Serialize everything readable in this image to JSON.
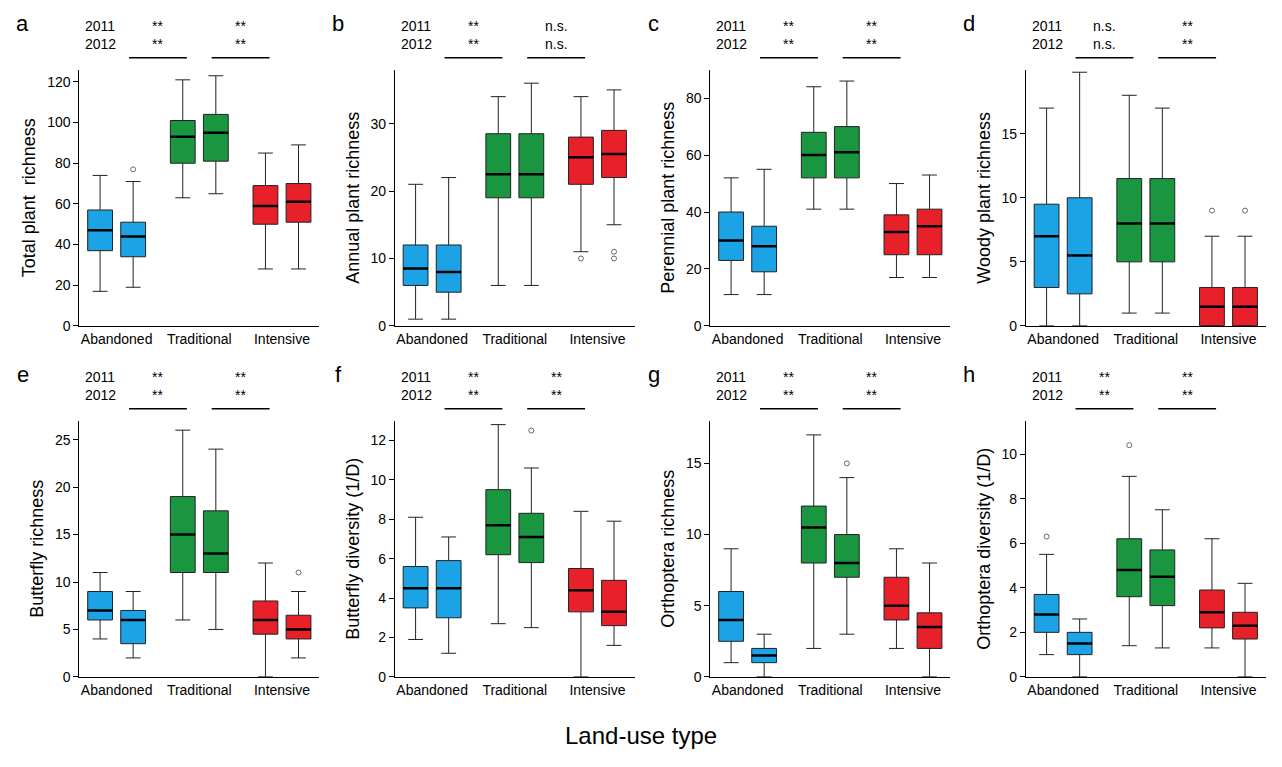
{
  "x_label": "Land-use type",
  "chart_data": [
    {
      "type": "box",
      "panel": "a",
      "ylabel": "Total plant  richness",
      "categories": [
        "Abandoned",
        "Traditional",
        "Intensive"
      ],
      "colors": [
        "#1ba3e6",
        "#1a9641",
        "#e8202a"
      ],
      "ylim": [
        0,
        126
      ],
      "yticks": [
        0,
        20,
        40,
        60,
        80,
        100,
        120
      ],
      "series": [
        {
          "name": "2011",
          "values": [
            {
              "whisker_low": 17,
              "q1": 37,
              "median": 47,
              "q3": 57,
              "whisker_high": 74
            },
            {
              "whisker_low": 63,
              "q1": 80,
              "median": 93,
              "q3": 101,
              "whisker_high": 121
            },
            {
              "whisker_low": 28,
              "q1": 50,
              "median": 59,
              "q3": 69,
              "whisker_high": 85
            }
          ]
        },
        {
          "name": "2012",
          "values": [
            {
              "whisker_low": 19,
              "q1": 34,
              "median": 44,
              "q3": 51,
              "whisker_high": 71,
              "outliers": [
                77
              ]
            },
            {
              "whisker_low": 65,
              "q1": 81,
              "median": 95,
              "q3": 104,
              "whisker_high": 123
            },
            {
              "whisker_low": 28,
              "q1": 51,
              "median": 61,
              "q3": 70,
              "whisker_high": 89
            }
          ]
        }
      ],
      "comparisons": [
        {
          "pair": [
            "Abandoned",
            "Traditional"
          ],
          "labels": [
            "**",
            "**"
          ]
        },
        {
          "pair": [
            "Traditional",
            "Intensive"
          ],
          "labels": [
            "**",
            "**"
          ]
        }
      ]
    },
    {
      "type": "box",
      "panel": "b",
      "ylabel": "Annual plant richness",
      "categories": [
        "Abandoned",
        "Traditional",
        "Intensive"
      ],
      "colors": [
        "#1ba3e6",
        "#1a9641",
        "#e8202a"
      ],
      "ylim": [
        0,
        38
      ],
      "yticks": [
        0,
        10,
        20,
        30
      ],
      "series": [
        {
          "name": "2011",
          "values": [
            {
              "whisker_low": 1,
              "q1": 6,
              "median": 8.5,
              "q3": 12,
              "whisker_high": 21
            },
            {
              "whisker_low": 6,
              "q1": 19,
              "median": 22.5,
              "q3": 28.5,
              "whisker_high": 34
            },
            {
              "whisker_low": 11,
              "q1": 21,
              "median": 25,
              "q3": 28,
              "whisker_high": 34,
              "outliers": [
                10
              ]
            }
          ]
        },
        {
          "name": "2012",
          "values": [
            {
              "whisker_low": 1,
              "q1": 5,
              "median": 8,
              "q3": 12,
              "whisker_high": 22
            },
            {
              "whisker_low": 6,
              "q1": 19,
              "median": 22.5,
              "q3": 28.5,
              "whisker_high": 36
            },
            {
              "whisker_low": 15,
              "q1": 22,
              "median": 25.5,
              "q3": 29,
              "whisker_high": 35,
              "outliers": [
                11,
                10
              ]
            }
          ]
        }
      ],
      "comparisons": [
        {
          "pair": [
            "Abandoned",
            "Traditional"
          ],
          "labels": [
            "**",
            "**"
          ]
        },
        {
          "pair": [
            "Traditional",
            "Intensive"
          ],
          "labels": [
            "n.s.",
            "n.s."
          ]
        }
      ]
    },
    {
      "type": "box",
      "panel": "c",
      "ylabel": "Perennial plant richness",
      "categories": [
        "Abandoned",
        "Traditional",
        "Intensive"
      ],
      "colors": [
        "#1ba3e6",
        "#1a9641",
        "#e8202a"
      ],
      "ylim": [
        0,
        90
      ],
      "yticks": [
        0,
        20,
        40,
        60,
        80
      ],
      "series": [
        {
          "name": "2011",
          "values": [
            {
              "whisker_low": 11,
              "q1": 23,
              "median": 30,
              "q3": 40,
              "whisker_high": 52
            },
            {
              "whisker_low": 41,
              "q1": 52,
              "median": 60,
              "q3": 68,
              "whisker_high": 84
            },
            {
              "whisker_low": 17,
              "q1": 25,
              "median": 33,
              "q3": 39,
              "whisker_high": 50
            }
          ]
        },
        {
          "name": "2012",
          "values": [
            {
              "whisker_low": 11,
              "q1": 19,
              "median": 28,
              "q3": 35,
              "whisker_high": 55
            },
            {
              "whisker_low": 41,
              "q1": 52,
              "median": 61,
              "q3": 70,
              "whisker_high": 86
            },
            {
              "whisker_low": 17,
              "q1": 25,
              "median": 35,
              "q3": 41,
              "whisker_high": 53
            }
          ]
        }
      ],
      "comparisons": [
        {
          "pair": [
            "Abandoned",
            "Traditional"
          ],
          "labels": [
            "**",
            "**"
          ]
        },
        {
          "pair": [
            "Traditional",
            "Intensive"
          ],
          "labels": [
            "**",
            "**"
          ]
        }
      ]
    },
    {
      "type": "box",
      "panel": "d",
      "ylabel": "Woody plant richness",
      "categories": [
        "Abandoned",
        "Traditional",
        "Intensive"
      ],
      "colors": [
        "#1ba3e6",
        "#1a9641",
        "#e8202a"
      ],
      "ylim": [
        0,
        20
      ],
      "yticks": [
        0,
        5,
        10,
        15
      ],
      "series": [
        {
          "name": "2011",
          "values": [
            {
              "whisker_low": 0,
              "q1": 3,
              "median": 7,
              "q3": 9.5,
              "whisker_high": 17
            },
            {
              "whisker_low": 1,
              "q1": 5,
              "median": 8,
              "q3": 11.5,
              "whisker_high": 18
            },
            {
              "whisker_low": 0,
              "q1": 0,
              "median": 1.5,
              "q3": 3,
              "whisker_high": 7,
              "outliers": [
                9
              ]
            }
          ]
        },
        {
          "name": "2012",
          "values": [
            {
              "whisker_low": 0,
              "q1": 2.5,
              "median": 5.5,
              "q3": 10,
              "whisker_high": 19.8
            },
            {
              "whisker_low": 1,
              "q1": 5,
              "median": 8,
              "q3": 11.5,
              "whisker_high": 17
            },
            {
              "whisker_low": 0,
              "q1": 0,
              "median": 1.5,
              "q3": 3,
              "whisker_high": 7,
              "outliers": [
                9
              ]
            }
          ]
        }
      ],
      "comparisons": [
        {
          "pair": [
            "Abandoned",
            "Traditional"
          ],
          "labels": [
            "n.s.",
            "n.s."
          ]
        },
        {
          "pair": [
            "Traditional",
            "Intensive"
          ],
          "labels": [
            "**",
            "**"
          ]
        }
      ]
    },
    {
      "type": "box",
      "panel": "e",
      "ylabel": "Butterfly richness",
      "categories": [
        "Abandoned",
        "Traditional",
        "Intensive"
      ],
      "colors": [
        "#1ba3e6",
        "#1a9641",
        "#e8202a"
      ],
      "ylim": [
        0,
        27
      ],
      "yticks": [
        0,
        5,
        10,
        15,
        20,
        25
      ],
      "series": [
        {
          "name": "2011",
          "values": [
            {
              "whisker_low": 4,
              "q1": 6,
              "median": 7,
              "q3": 9,
              "whisker_high": 11
            },
            {
              "whisker_low": 6,
              "q1": 11,
              "median": 15,
              "q3": 19,
              "whisker_high": 26
            },
            {
              "whisker_low": 0,
              "q1": 4.5,
              "median": 6,
              "q3": 8,
              "whisker_high": 12
            }
          ]
        },
        {
          "name": "2012",
          "values": [
            {
              "whisker_low": 2,
              "q1": 3.5,
              "median": 6,
              "q3": 7,
              "whisker_high": 9
            },
            {
              "whisker_low": 5,
              "q1": 11,
              "median": 13,
              "q3": 17.5,
              "whisker_high": 24
            },
            {
              "whisker_low": 2,
              "q1": 4,
              "median": 5,
              "q3": 6.5,
              "whisker_high": 9,
              "outliers": [
                11
              ]
            }
          ]
        }
      ],
      "comparisons": [
        {
          "pair": [
            "Abandoned",
            "Traditional"
          ],
          "labels": [
            "**",
            "**"
          ]
        },
        {
          "pair": [
            "Traditional",
            "Intensive"
          ],
          "labels": [
            "**",
            "**"
          ]
        }
      ]
    },
    {
      "type": "box",
      "panel": "f",
      "ylabel": "Butterfly diversity (1/D)",
      "categories": [
        "Abandoned",
        "Traditional",
        "Intensive"
      ],
      "colors": [
        "#1ba3e6",
        "#1a9641",
        "#e8202a"
      ],
      "ylim": [
        0,
        13
      ],
      "yticks": [
        0,
        2,
        4,
        6,
        8,
        10,
        12
      ],
      "series": [
        {
          "name": "2011",
          "values": [
            {
              "whisker_low": 1.9,
              "q1": 3.5,
              "median": 4.5,
              "q3": 5.6,
              "whisker_high": 8.1
            },
            {
              "whisker_low": 2.7,
              "q1": 6.2,
              "median": 7.7,
              "q3": 9.5,
              "whisker_high": 12.8
            },
            {
              "whisker_low": 0,
              "q1": 3.3,
              "median": 4.4,
              "q3": 5.5,
              "whisker_high": 8.4
            }
          ]
        },
        {
          "name": "2012",
          "values": [
            {
              "whisker_low": 1.2,
              "q1": 3,
              "median": 4.5,
              "q3": 5.9,
              "whisker_high": 7.1
            },
            {
              "whisker_low": 2.5,
              "q1": 5.8,
              "median": 7.1,
              "q3": 8.3,
              "whisker_high": 10.6,
              "outliers": [
                12.5
              ]
            },
            {
              "whisker_low": 1.6,
              "q1": 2.6,
              "median": 3.3,
              "q3": 4.9,
              "whisker_high": 7.9
            }
          ]
        }
      ],
      "comparisons": [
        {
          "pair": [
            "Abandoned",
            "Traditional"
          ],
          "labels": [
            "**",
            "**"
          ]
        },
        {
          "pair": [
            "Traditional",
            "Intensive"
          ],
          "labels": [
            "**",
            "**"
          ]
        }
      ]
    },
    {
      "type": "box",
      "panel": "g",
      "ylabel": "Orthoptera richness",
      "categories": [
        "Abandoned",
        "Traditional",
        "Intensive"
      ],
      "colors": [
        "#1ba3e6",
        "#1a9641",
        "#e8202a"
      ],
      "ylim": [
        0,
        18
      ],
      "yticks": [
        0,
        5,
        10,
        15
      ],
      "series": [
        {
          "name": "2011",
          "values": [
            {
              "whisker_low": 1,
              "q1": 2.5,
              "median": 4,
              "q3": 6,
              "whisker_high": 9
            },
            {
              "whisker_low": 2,
              "q1": 8,
              "median": 10.5,
              "q3": 12,
              "whisker_high": 17
            },
            {
              "whisker_low": 2,
              "q1": 4,
              "median": 5,
              "q3": 7,
              "whisker_high": 9
            }
          ]
        },
        {
          "name": "2012",
          "values": [
            {
              "whisker_low": 0,
              "q1": 1,
              "median": 1.5,
              "q3": 2,
              "whisker_high": 3
            },
            {
              "whisker_low": 3,
              "q1": 7,
              "median": 8,
              "q3": 10,
              "whisker_high": 14,
              "outliers": [
                15
              ]
            },
            {
              "whisker_low": 0,
              "q1": 2,
              "median": 3.5,
              "q3": 4.5,
              "whisker_high": 8
            }
          ]
        }
      ],
      "comparisons": [
        {
          "pair": [
            "Abandoned",
            "Traditional"
          ],
          "labels": [
            "**",
            "**"
          ]
        },
        {
          "pair": [
            "Traditional",
            "Intensive"
          ],
          "labels": [
            "**",
            "**"
          ]
        }
      ]
    },
    {
      "type": "box",
      "panel": "h",
      "ylabel": "Orthoptera diversity (1/D)",
      "categories": [
        "Abandoned",
        "Traditional",
        "Intensive"
      ],
      "colors": [
        "#1ba3e6",
        "#1a9641",
        "#e8202a"
      ],
      "ylim": [
        0,
        11.5
      ],
      "yticks": [
        0,
        2,
        4,
        6,
        8,
        10
      ],
      "series": [
        {
          "name": "2011",
          "values": [
            {
              "whisker_low": 1,
              "q1": 2,
              "median": 2.8,
              "q3": 3.7,
              "whisker_high": 5.5,
              "outliers": [
                6.3
              ]
            },
            {
              "whisker_low": 1.4,
              "q1": 3.6,
              "median": 4.8,
              "q3": 6.2,
              "whisker_high": 9,
              "outliers": [
                10.4
              ]
            },
            {
              "whisker_low": 1.3,
              "q1": 2.2,
              "median": 2.9,
              "q3": 3.9,
              "whisker_high": 6.2
            }
          ]
        },
        {
          "name": "2012",
          "values": [
            {
              "whisker_low": 0,
              "q1": 1,
              "median": 1.5,
              "q3": 2,
              "whisker_high": 2.6
            },
            {
              "whisker_low": 1.3,
              "q1": 3.2,
              "median": 4.5,
              "q3": 5.7,
              "whisker_high": 7.5
            },
            {
              "whisker_low": 0,
              "q1": 1.7,
              "median": 2.3,
              "q3": 2.9,
              "whisker_high": 4.2
            }
          ]
        }
      ],
      "comparisons": [
        {
          "pair": [
            "Abandoned",
            "Traditional"
          ],
          "labels": [
            "**",
            "**"
          ]
        },
        {
          "pair": [
            "Traditional",
            "Intensive"
          ],
          "labels": [
            "**",
            "**"
          ]
        }
      ]
    }
  ]
}
